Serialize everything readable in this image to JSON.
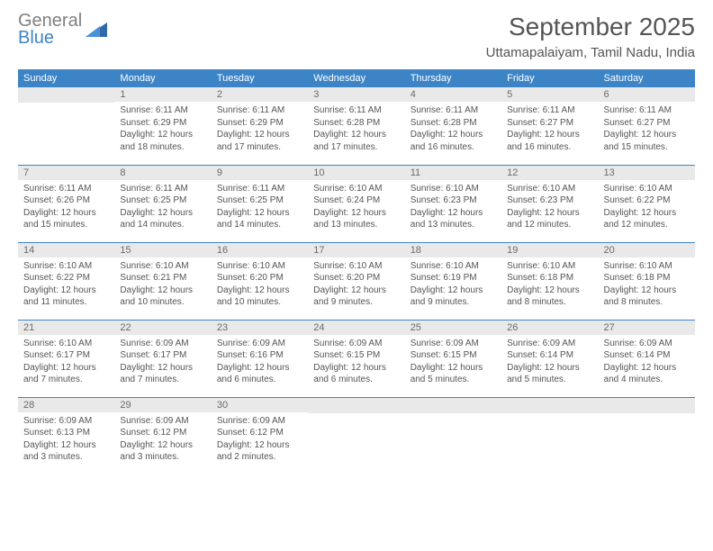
{
  "brand": {
    "line1": "General",
    "line2": "Blue"
  },
  "title": "September 2025",
  "location": "Uttamapalaiyam, Tamil Nadu, India",
  "colors": {
    "header_bg": "#3d84c6",
    "header_text": "#ffffff",
    "daynum_bg": "#e9e9e9",
    "body_text": "#555555",
    "rule": "#3d84c6",
    "brand_gray": "#808080",
    "brand_blue": "#3d84c6"
  },
  "fonts": {
    "title_size": 28,
    "location_size": 15,
    "th_size": 11,
    "cell_size": 10
  },
  "weekdays": [
    "Sunday",
    "Monday",
    "Tuesday",
    "Wednesday",
    "Thursday",
    "Friday",
    "Saturday"
  ],
  "weeks": [
    [
      {
        "n": "",
        "sr": "",
        "ss": "",
        "dl": ""
      },
      {
        "n": "1",
        "sr": "Sunrise: 6:11 AM",
        "ss": "Sunset: 6:29 PM",
        "dl": "Daylight: 12 hours and 18 minutes."
      },
      {
        "n": "2",
        "sr": "Sunrise: 6:11 AM",
        "ss": "Sunset: 6:29 PM",
        "dl": "Daylight: 12 hours and 17 minutes."
      },
      {
        "n": "3",
        "sr": "Sunrise: 6:11 AM",
        "ss": "Sunset: 6:28 PM",
        "dl": "Daylight: 12 hours and 17 minutes."
      },
      {
        "n": "4",
        "sr": "Sunrise: 6:11 AM",
        "ss": "Sunset: 6:28 PM",
        "dl": "Daylight: 12 hours and 16 minutes."
      },
      {
        "n": "5",
        "sr": "Sunrise: 6:11 AM",
        "ss": "Sunset: 6:27 PM",
        "dl": "Daylight: 12 hours and 16 minutes."
      },
      {
        "n": "6",
        "sr": "Sunrise: 6:11 AM",
        "ss": "Sunset: 6:27 PM",
        "dl": "Daylight: 12 hours and 15 minutes."
      }
    ],
    [
      {
        "n": "7",
        "sr": "Sunrise: 6:11 AM",
        "ss": "Sunset: 6:26 PM",
        "dl": "Daylight: 12 hours and 15 minutes."
      },
      {
        "n": "8",
        "sr": "Sunrise: 6:11 AM",
        "ss": "Sunset: 6:25 PM",
        "dl": "Daylight: 12 hours and 14 minutes."
      },
      {
        "n": "9",
        "sr": "Sunrise: 6:11 AM",
        "ss": "Sunset: 6:25 PM",
        "dl": "Daylight: 12 hours and 14 minutes."
      },
      {
        "n": "10",
        "sr": "Sunrise: 6:10 AM",
        "ss": "Sunset: 6:24 PM",
        "dl": "Daylight: 12 hours and 13 minutes."
      },
      {
        "n": "11",
        "sr": "Sunrise: 6:10 AM",
        "ss": "Sunset: 6:23 PM",
        "dl": "Daylight: 12 hours and 13 minutes."
      },
      {
        "n": "12",
        "sr": "Sunrise: 6:10 AM",
        "ss": "Sunset: 6:23 PM",
        "dl": "Daylight: 12 hours and 12 minutes."
      },
      {
        "n": "13",
        "sr": "Sunrise: 6:10 AM",
        "ss": "Sunset: 6:22 PM",
        "dl": "Daylight: 12 hours and 12 minutes."
      }
    ],
    [
      {
        "n": "14",
        "sr": "Sunrise: 6:10 AM",
        "ss": "Sunset: 6:22 PM",
        "dl": "Daylight: 12 hours and 11 minutes."
      },
      {
        "n": "15",
        "sr": "Sunrise: 6:10 AM",
        "ss": "Sunset: 6:21 PM",
        "dl": "Daylight: 12 hours and 10 minutes."
      },
      {
        "n": "16",
        "sr": "Sunrise: 6:10 AM",
        "ss": "Sunset: 6:20 PM",
        "dl": "Daylight: 12 hours and 10 minutes."
      },
      {
        "n": "17",
        "sr": "Sunrise: 6:10 AM",
        "ss": "Sunset: 6:20 PM",
        "dl": "Daylight: 12 hours and 9 minutes."
      },
      {
        "n": "18",
        "sr": "Sunrise: 6:10 AM",
        "ss": "Sunset: 6:19 PM",
        "dl": "Daylight: 12 hours and 9 minutes."
      },
      {
        "n": "19",
        "sr": "Sunrise: 6:10 AM",
        "ss": "Sunset: 6:18 PM",
        "dl": "Daylight: 12 hours and 8 minutes."
      },
      {
        "n": "20",
        "sr": "Sunrise: 6:10 AM",
        "ss": "Sunset: 6:18 PM",
        "dl": "Daylight: 12 hours and 8 minutes."
      }
    ],
    [
      {
        "n": "21",
        "sr": "Sunrise: 6:10 AM",
        "ss": "Sunset: 6:17 PM",
        "dl": "Daylight: 12 hours and 7 minutes."
      },
      {
        "n": "22",
        "sr": "Sunrise: 6:09 AM",
        "ss": "Sunset: 6:17 PM",
        "dl": "Daylight: 12 hours and 7 minutes."
      },
      {
        "n": "23",
        "sr": "Sunrise: 6:09 AM",
        "ss": "Sunset: 6:16 PM",
        "dl": "Daylight: 12 hours and 6 minutes."
      },
      {
        "n": "24",
        "sr": "Sunrise: 6:09 AM",
        "ss": "Sunset: 6:15 PM",
        "dl": "Daylight: 12 hours and 6 minutes."
      },
      {
        "n": "25",
        "sr": "Sunrise: 6:09 AM",
        "ss": "Sunset: 6:15 PM",
        "dl": "Daylight: 12 hours and 5 minutes."
      },
      {
        "n": "26",
        "sr": "Sunrise: 6:09 AM",
        "ss": "Sunset: 6:14 PM",
        "dl": "Daylight: 12 hours and 5 minutes."
      },
      {
        "n": "27",
        "sr": "Sunrise: 6:09 AM",
        "ss": "Sunset: 6:14 PM",
        "dl": "Daylight: 12 hours and 4 minutes."
      }
    ],
    [
      {
        "n": "28",
        "sr": "Sunrise: 6:09 AM",
        "ss": "Sunset: 6:13 PM",
        "dl": "Daylight: 12 hours and 3 minutes."
      },
      {
        "n": "29",
        "sr": "Sunrise: 6:09 AM",
        "ss": "Sunset: 6:12 PM",
        "dl": "Daylight: 12 hours and 3 minutes."
      },
      {
        "n": "30",
        "sr": "Sunrise: 6:09 AM",
        "ss": "Sunset: 6:12 PM",
        "dl": "Daylight: 12 hours and 2 minutes."
      },
      {
        "n": "",
        "sr": "",
        "ss": "",
        "dl": ""
      },
      {
        "n": "",
        "sr": "",
        "ss": "",
        "dl": ""
      },
      {
        "n": "",
        "sr": "",
        "ss": "",
        "dl": ""
      },
      {
        "n": "",
        "sr": "",
        "ss": "",
        "dl": ""
      }
    ]
  ]
}
